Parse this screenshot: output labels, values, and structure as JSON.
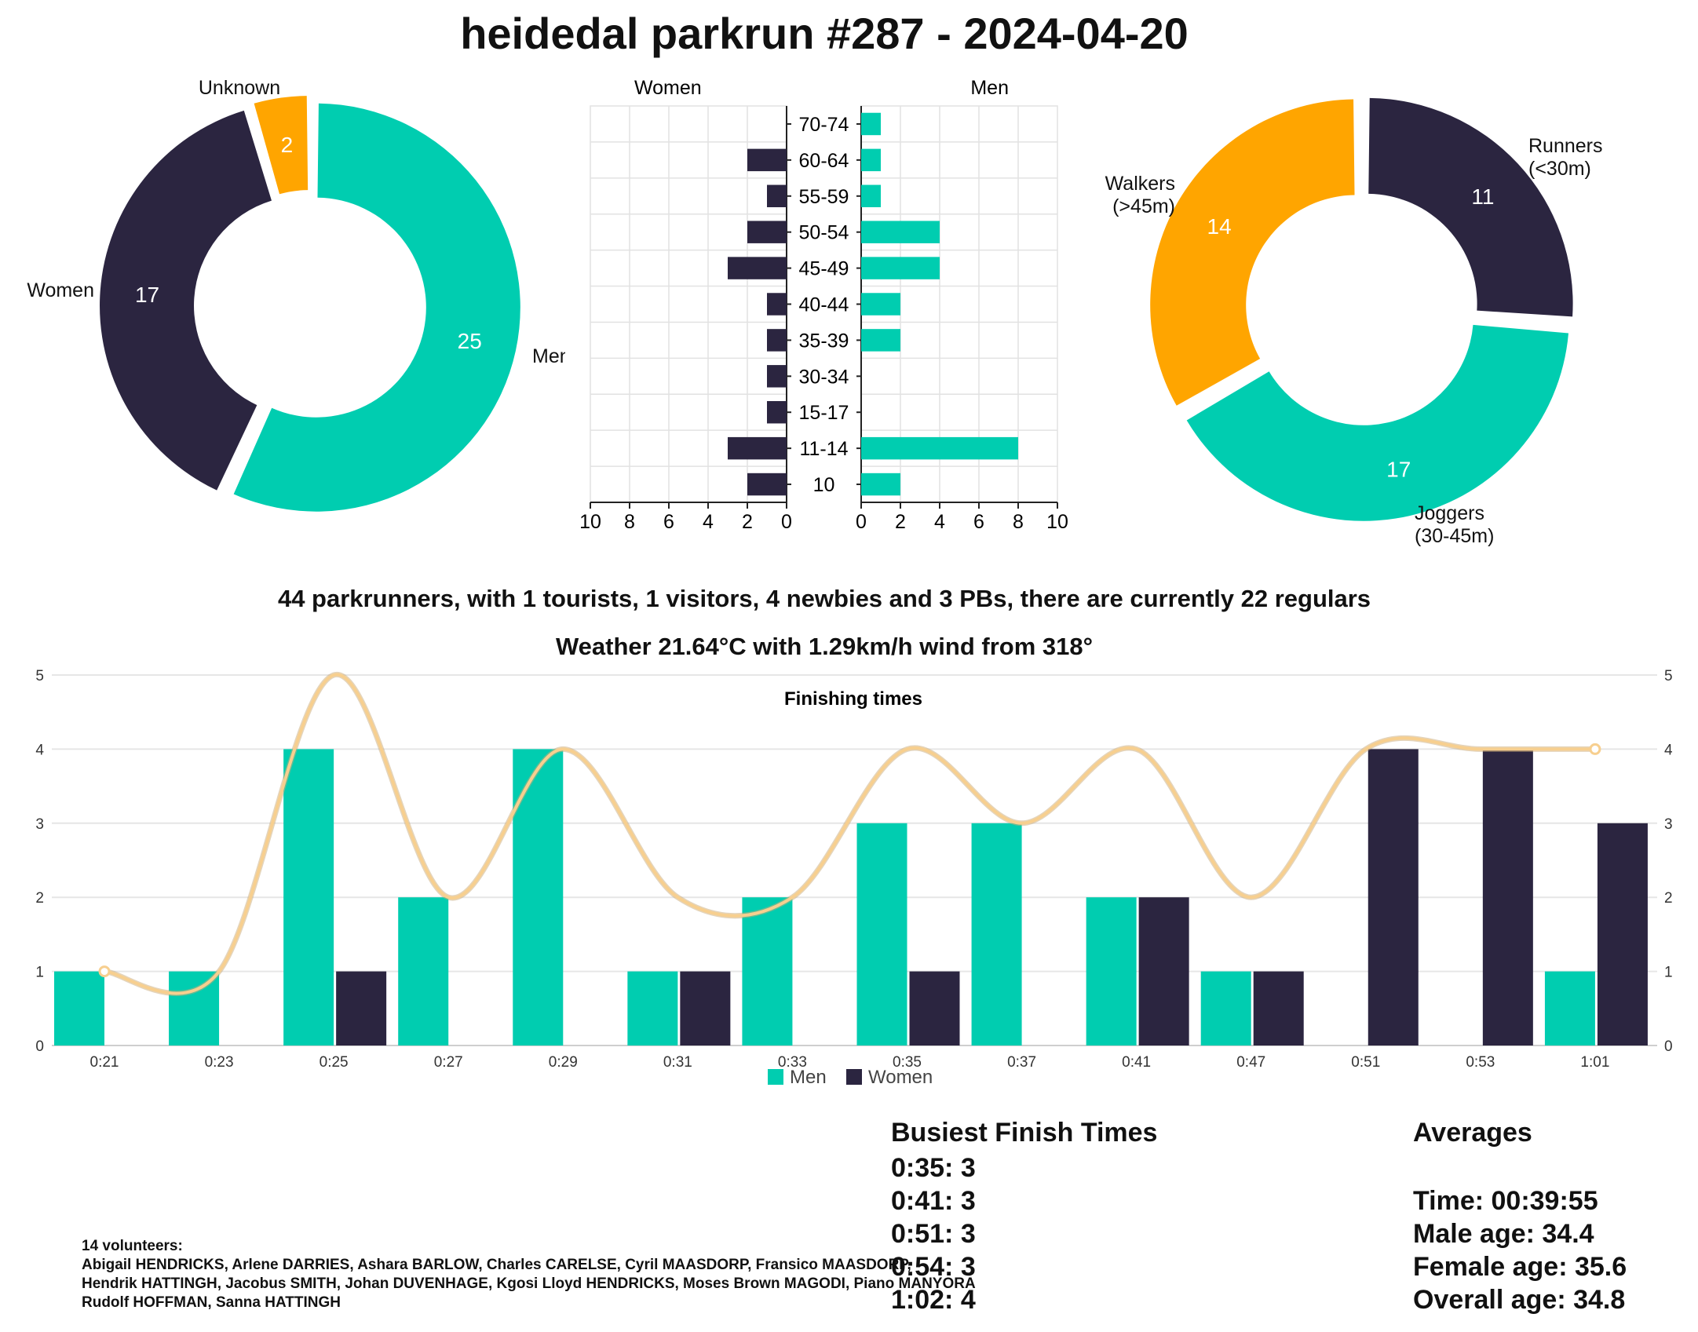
{
  "title": "heidedal parkrun #287 - 2024-04-20",
  "colors": {
    "men": "#00cdb0",
    "women": "#2b2540",
    "unknown": "#ffa500",
    "line": "#f7cf8f"
  },
  "gender_donut": {
    "slices": [
      {
        "label": "Men",
        "value": 25,
        "color": "#00cdb0"
      },
      {
        "label": "Women",
        "value": 17,
        "color": "#2b2540"
      },
      {
        "label": "Unknown",
        "value": 2,
        "color": "#ffa500"
      }
    ]
  },
  "age_chart": {
    "left_label": "Women",
    "right_label": "Men",
    "groups": [
      "70-74",
      "60-64",
      "55-59",
      "50-54",
      "45-49",
      "40-44",
      "35-39",
      "30-34",
      "15-17",
      "11-14",
      "10"
    ],
    "women": [
      0,
      2,
      1,
      2,
      3,
      1,
      1,
      1,
      1,
      3,
      2
    ],
    "men": [
      1,
      1,
      1,
      4,
      4,
      2,
      2,
      0,
      0,
      8,
      2
    ],
    "left_ticks": [
      "10",
      "8",
      "6",
      "4",
      "2",
      "0"
    ],
    "right_ticks": [
      "0",
      "2",
      "4",
      "6",
      "8",
      "10"
    ],
    "xmax": 10
  },
  "pace_donut": {
    "slices": [
      {
        "label": "Runners\n(<30m)",
        "value": 11,
        "color": "#2b2540"
      },
      {
        "label": "Joggers\n(30-45m)",
        "value": 17,
        "color": "#00cdb0"
      },
      {
        "label": "Walkers\n(>45m)",
        "value": 14,
        "color": "#ffa500"
      }
    ]
  },
  "summary_line": "44 parkrunners, with 1 tourists, 1 visitors, 4 newbies and 3 PBs, there are currently 22 regulars",
  "weather_line": "Weather 21.64°C with 1.29km/h wind from 318°",
  "chart_data": {
    "type": "bar",
    "title": "Finishing times",
    "categories": [
      "0:21",
      "0:23",
      "0:25",
      "0:27",
      "0:29",
      "0:31",
      "0:33",
      "0:35",
      "0:37",
      "0:41",
      "0:47",
      "0:51",
      "0:53",
      "1:01"
    ],
    "series": [
      {
        "name": "Men",
        "values": [
          1,
          1,
          4,
          2,
          4,
          1,
          2,
          3,
          3,
          2,
          1,
          0,
          0,
          1
        ]
      },
      {
        "name": "Women",
        "values": [
          0,
          0,
          1,
          0,
          0,
          1,
          0,
          1,
          0,
          2,
          1,
          4,
          4,
          3
        ]
      },
      {
        "values": [
          1,
          1,
          5,
          2,
          4,
          2,
          2,
          4,
          3,
          4,
          2,
          4,
          4,
          4
        ]
      }
    ],
    "ylim": [
      0,
      5
    ],
    "yticks": [
      "0",
      "1",
      "2",
      "3",
      "4",
      "5"
    ],
    "legend_position": "bottom",
    "grid": true
  },
  "busiest": {
    "heading": "Busiest Finish Times",
    "lines": [
      "0:35: 3",
      "0:41: 3",
      "0:51: 3",
      "0:54: 3",
      "1:02: 4"
    ]
  },
  "averages": {
    "heading": "Averages",
    "lines": [
      "Time: 00:39:55",
      "Male age: 34.4",
      "Female age: 35.6",
      "Overall age: 34.8"
    ]
  },
  "volunteers": {
    "heading": "14 volunteers:",
    "lines": [
      "Abigail HENDRICKS, Arlene DARRIES, Ashara BARLOW, Charles CARELSE, Cyril MAASDORP, Fransico MAASDORP,",
      "Hendrik HATTINGH, Jacobus SMITH, Johan DUVENHAGE, Kgosi Lloyd HENDRICKS, Moses Brown MAGODI, Piano MANYORA",
      "Rudolf HOFFMAN, Sanna HATTINGH"
    ]
  }
}
